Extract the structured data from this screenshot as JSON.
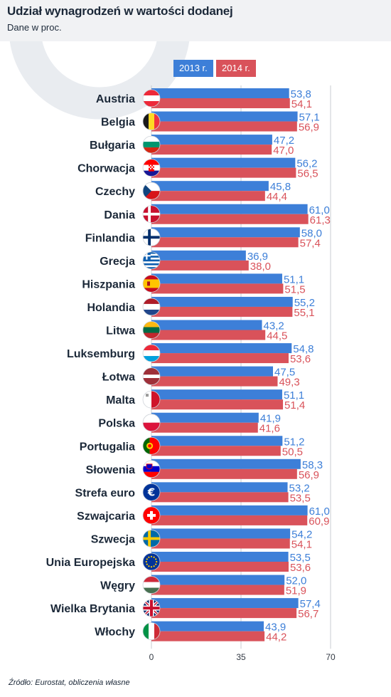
{
  "chart_data": {
    "type": "bar",
    "title": "Udział wynagrodzeń w wartości dodanej",
    "subtitle": "Dane w proc.",
    "source": "Źródło: Eurostat, obliczenia własne",
    "categories": [
      "Austria",
      "Belgia",
      "Bułgaria",
      "Chorwacja",
      "Czechy",
      "Dania",
      "Finlandia",
      "Grecja",
      "Hiszpania",
      "Holandia",
      "Litwa",
      "Luksemburg",
      "Łotwa",
      "Malta",
      "Polska",
      "Portugalia",
      "Słowenia",
      "Strefa euro",
      "Szwajcaria",
      "Szwecja",
      "Unia Europejska",
      "Węgry",
      "Wielka Brytania",
      "Włochy"
    ],
    "value_labels": {
      "2013 r.": [
        "53,8",
        "57,1",
        "47,2",
        "56,2",
        "45,8",
        "61,0",
        "58,0",
        "36,9",
        "51,1",
        "55,2",
        "43,2",
        "54,8",
        "47,5",
        "51,1",
        "41,9",
        "51,2",
        "58,3",
        "53,2",
        "61,0",
        "54,2",
        "53,5",
        "52,0",
        "57,4",
        "43,9"
      ],
      "2014 r.": [
        "54,1",
        "56,9",
        "47,0",
        "56,5",
        "44,4",
        "61,3",
        "57,4",
        "38,0",
        "51,5",
        "55,1",
        "44,5",
        "53,6",
        "49,3",
        "51,4",
        "41,6",
        "50,5",
        "56,9",
        "53,5",
        "60,9",
        "54,1",
        "53,6",
        "51,9",
        "56,7",
        "44,2"
      ]
    },
    "series": [
      {
        "name": "2013 r.",
        "color": "#3d7fd8",
        "values": [
          53.8,
          57.1,
          47.2,
          56.2,
          45.8,
          61.0,
          58.0,
          36.9,
          51.1,
          55.2,
          43.2,
          54.8,
          47.5,
          51.1,
          41.9,
          51.2,
          58.3,
          53.2,
          61.0,
          54.2,
          53.5,
          52.0,
          57.4,
          43.9
        ]
      },
      {
        "name": "2014 r.",
        "color": "#d9525a",
        "values": [
          54.1,
          56.9,
          47.0,
          56.5,
          44.4,
          61.3,
          57.4,
          38.0,
          51.5,
          55.1,
          44.5,
          53.6,
          49.3,
          51.4,
          41.6,
          50.5,
          56.9,
          53.5,
          60.9,
          54.1,
          53.6,
          51.9,
          56.7,
          44.2
        ]
      }
    ],
    "xticks": [
      "0",
      "35",
      "70"
    ],
    "xtick_values": [
      0,
      35,
      70
    ],
    "xlim": [
      0,
      70
    ],
    "grid": true,
    "legend": "top-center",
    "flags": [
      "austria-flag",
      "belgium-flag",
      "bulgaria-flag",
      "croatia-flag",
      "czech-flag",
      "denmark-flag",
      "finland-flag",
      "greece-flag",
      "spain-flag",
      "netherlands-flag",
      "lithuania-flag",
      "luxembourg-flag",
      "latvia-flag",
      "malta-flag",
      "poland-flag",
      "portugal-flag",
      "slovenia-flag",
      "euro-flag",
      "switzerland-flag",
      "sweden-flag",
      "eu-flag",
      "hungary-flag",
      "uk-flag",
      "italy-flag"
    ]
  }
}
